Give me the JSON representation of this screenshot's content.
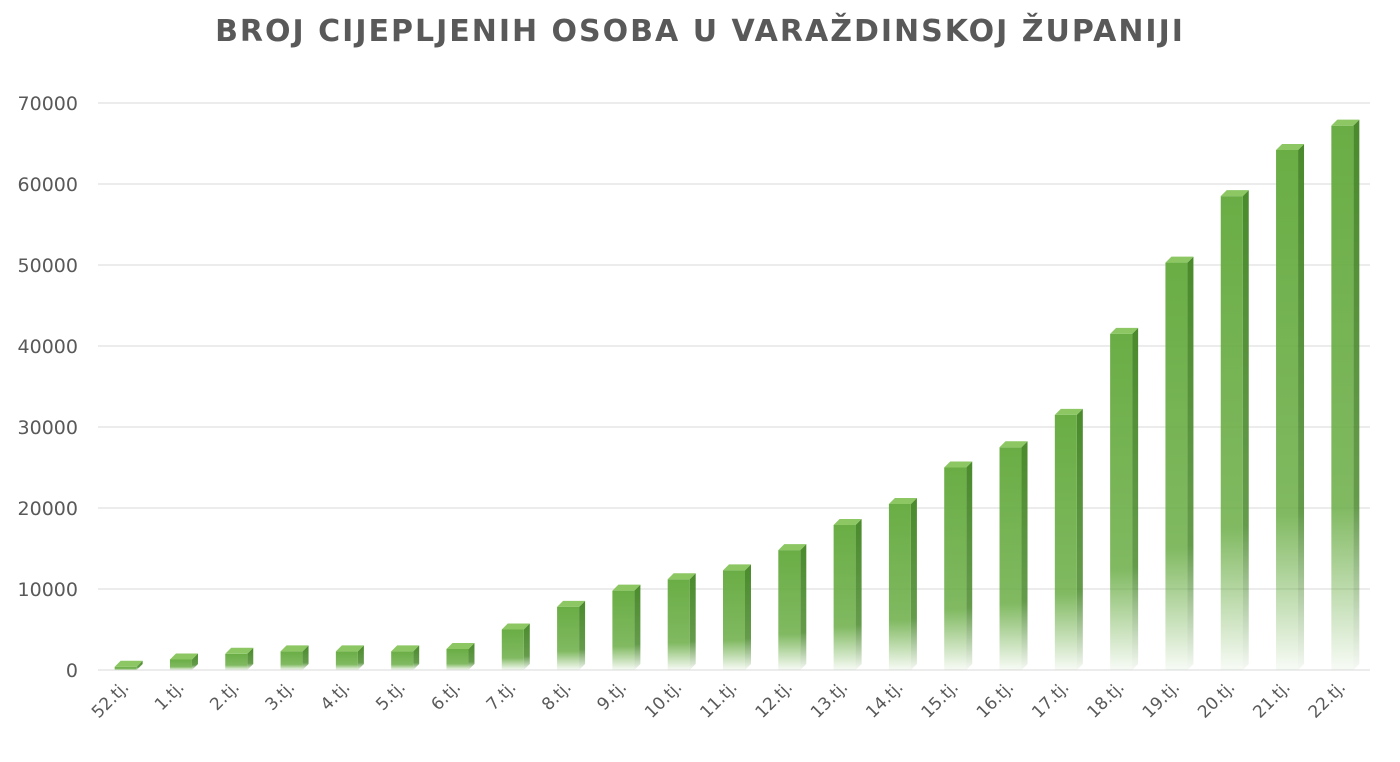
{
  "chart_data": {
    "type": "bar",
    "title": "BROJ CIJEPLJENIH OSOBA U VARAŽDINSKOJ ŽUPANIJI",
    "categories": [
      "52.tj.",
      "1.tj.",
      "2.tj.",
      "3.tj.",
      "4.tj.",
      "5.tj.",
      "6.tj.",
      "7.tj.",
      "8.tj.",
      "9.tj.",
      "10.tj.",
      "11.tj.",
      "12.tj.",
      "13.tj.",
      "14.tj.",
      "15.tj.",
      "16.tj.",
      "17.tj.",
      "18.tj.",
      "19.tj.",
      "20.tj.",
      "21.tj.",
      "22.tj."
    ],
    "values": [
      400,
      1300,
      2000,
      2300,
      2300,
      2300,
      2600,
      5000,
      7800,
      9800,
      11200,
      12300,
      14800,
      17900,
      20500,
      25000,
      27500,
      31500,
      41500,
      50300,
      58500,
      64200,
      67200
    ],
    "ylim": [
      0,
      70000
    ],
    "yticks": [
      "0",
      "10000",
      "20000",
      "30000",
      "40000",
      "50000",
      "60000",
      "70000"
    ],
    "grid": true,
    "legend": "none",
    "colors": {
      "bar": "#6aad45",
      "bar_top": "#8cc763",
      "bar_side": "#4a8a2c",
      "grid": "#e6e6e6",
      "text": "#595959"
    }
  }
}
